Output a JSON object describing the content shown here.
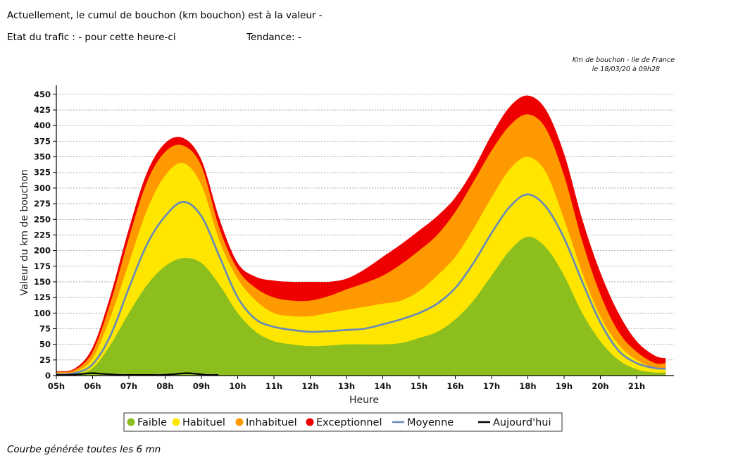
{
  "header": {
    "line1": "Actuellement, le cumul de bouchon (km bouchon) est à la valeur -",
    "line2": "Etat du trafic : - pour cette heure-ci",
    "trend": "Tendance: -"
  },
  "footer": "Courbe générée toutes les 6 mn",
  "chart_data": {
    "type": "area",
    "title": "Km de bouchon - Ile de France",
    "subtitle": "le 18/03/20 à 09h28",
    "xlabel": "Heure",
    "ylabel": "Valeur du  km de bouchon",
    "ylim": [
      0,
      460
    ],
    "yticks": [
      0,
      25,
      50,
      75,
      100,
      125,
      150,
      175,
      200,
      225,
      250,
      275,
      300,
      325,
      350,
      375,
      400,
      425,
      450
    ],
    "xlim": [
      5,
      22
    ],
    "xticks": [
      5,
      6,
      7,
      8,
      9,
      10,
      11,
      12,
      13,
      14,
      15,
      16,
      17,
      18,
      19,
      20,
      21
    ],
    "xtick_labels": [
      "05h",
      "06h",
      "07h",
      "08h",
      "09h",
      "10h",
      "11h",
      "12h",
      "13h",
      "14h",
      "15h",
      "16h",
      "17h",
      "18h",
      "19h",
      "20h",
      "21h"
    ],
    "grid": "horizontal dashed",
    "legend_position": "bottom",
    "colors": {
      "faible": "#8cbe1e",
      "habituel": "#ffe600",
      "inhabituel": "#ff9900",
      "exceptionnel": "#ee0000",
      "moyenne": "#6688bb",
      "aujourdhui": "#000000"
    },
    "x": [
      5.0,
      5.5,
      6.0,
      6.5,
      7.0,
      7.5,
      8.0,
      8.5,
      9.0,
      9.5,
      10.0,
      10.5,
      11.0,
      11.5,
      12.0,
      12.5,
      13.0,
      13.5,
      14.0,
      14.5,
      15.0,
      15.5,
      16.0,
      16.5,
      17.0,
      17.5,
      18.0,
      18.5,
      19.0,
      19.5,
      20.0,
      20.5,
      21.0,
      21.5,
      21.8
    ],
    "series": [
      {
        "name": "Faible",
        "kind": "area",
        "values": [
          2,
          3,
          12,
          50,
          100,
          145,
          175,
          188,
          180,
          145,
          100,
          70,
          55,
          50,
          47,
          48,
          50,
          50,
          50,
          52,
          60,
          70,
          90,
          120,
          160,
          200,
          222,
          205,
          160,
          100,
          55,
          25,
          10,
          5,
          5
        ]
      },
      {
        "name": "Habituel",
        "kind": "area",
        "values": [
          4,
          6,
          28,
          95,
          180,
          265,
          320,
          340,
          305,
          215,
          155,
          120,
          100,
          95,
          95,
          100,
          105,
          110,
          115,
          120,
          135,
          160,
          190,
          235,
          285,
          330,
          350,
          325,
          250,
          165,
          95,
          50,
          25,
          12,
          12
        ]
      },
      {
        "name": "Inhabituel",
        "kind": "area",
        "values": [
          6,
          9,
          38,
          118,
          220,
          310,
          358,
          368,
          335,
          235,
          170,
          140,
          125,
          120,
          120,
          127,
          138,
          148,
          160,
          178,
          200,
          225,
          262,
          310,
          360,
          400,
          418,
          395,
          320,
          215,
          130,
          70,
          38,
          20,
          20
        ]
      },
      {
        "name": "Exceptionnel",
        "kind": "area",
        "values": [
          7,
          11,
          45,
          130,
          235,
          325,
          372,
          380,
          345,
          250,
          180,
          158,
          152,
          150,
          150,
          150,
          155,
          170,
          190,
          210,
          232,
          255,
          285,
          330,
          385,
          430,
          448,
          425,
          355,
          250,
          165,
          100,
          55,
          32,
          28
        ]
      },
      {
        "name": "Moyenne",
        "kind": "line",
        "values": [
          2,
          4,
          18,
          65,
          140,
          210,
          255,
          278,
          255,
          190,
          125,
          90,
          78,
          73,
          70,
          71,
          73,
          75,
          82,
          90,
          100,
          115,
          140,
          180,
          228,
          270,
          290,
          270,
          220,
          150,
          85,
          40,
          20,
          12,
          11
        ]
      },
      {
        "name": "Aujourd'hui",
        "kind": "line",
        "x": [
          5.0,
          5.3,
          5.6,
          5.8,
          6.0,
          6.2,
          6.5,
          6.8,
          7.0,
          7.3,
          7.6,
          7.9,
          8.2,
          8.4,
          8.6,
          8.8,
          9.0,
          9.2,
          9.47
        ],
        "values": [
          1,
          1,
          2,
          3,
          4,
          3,
          2,
          1,
          1,
          1,
          1,
          1,
          2,
          3,
          4,
          3,
          2,
          1,
          1
        ]
      }
    ]
  }
}
